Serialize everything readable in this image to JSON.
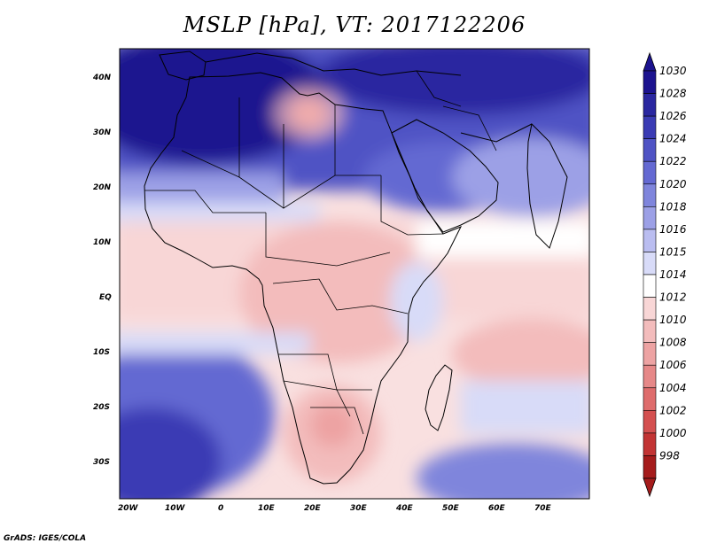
{
  "title": "MSLP [hPa], VT: 2017122206",
  "credit": "GrADS: IGES/COLA",
  "map": {
    "region": "Africa",
    "lat_labels": [
      "40N",
      "30N",
      "20N",
      "10N",
      "EQ",
      "10S",
      "20S",
      "30S"
    ],
    "lon_labels": [
      "20W",
      "10W",
      "0",
      "10E",
      "20E",
      "30E",
      "40E",
      "50E",
      "60E",
      "70E"
    ]
  },
  "colorbar": {
    "labels": [
      "1030",
      "1028",
      "1026",
      "1024",
      "1022",
      "1020",
      "1018",
      "1016",
      "1015",
      "1014",
      "1012",
      "1010",
      "1008",
      "1006",
      "1004",
      "1002",
      "1000",
      "998"
    ],
    "colors": [
      "#1c138f",
      "#2a27a0",
      "#3a3bb4",
      "#4f53c4",
      "#6469d2",
      "#7f85dc",
      "#9ca0e6",
      "#babdf0",
      "#d8dbf8",
      "#ffffff",
      "#f8d6d6",
      "#f3bcbc",
      "#eda3a3",
      "#e68888",
      "#de6c6c",
      "#d45050",
      "#c23434",
      "#a51c1c"
    ]
  }
}
